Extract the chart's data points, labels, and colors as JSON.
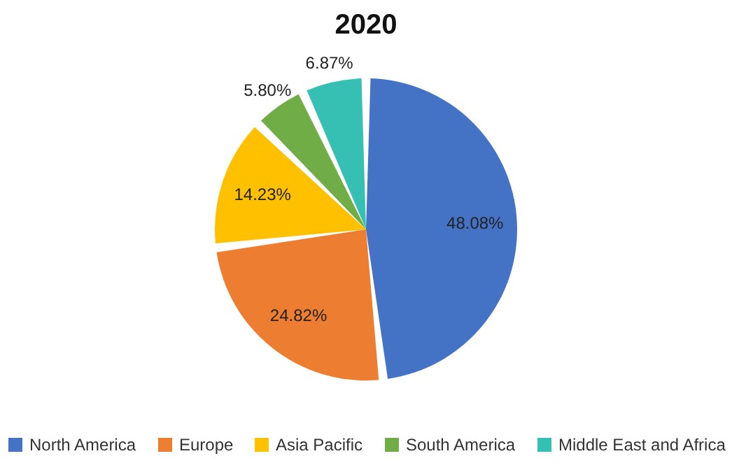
{
  "chart_data": {
    "type": "pie",
    "title": "2020",
    "categories": [
      "North America",
      "Europe",
      "Asia Pacific",
      "South America",
      "Middle East and Africa"
    ],
    "values": [
      48.08,
      24.82,
      14.23,
      5.8,
      6.87
    ],
    "value_labels": [
      "48.08%",
      "24.82%",
      "14.23%",
      "5.80%",
      "6.87%"
    ],
    "colors": [
      "#4472c4",
      "#ed7d31",
      "#ffc000",
      "#70ad47",
      "#36c0b3"
    ],
    "legend": "bottom"
  }
}
